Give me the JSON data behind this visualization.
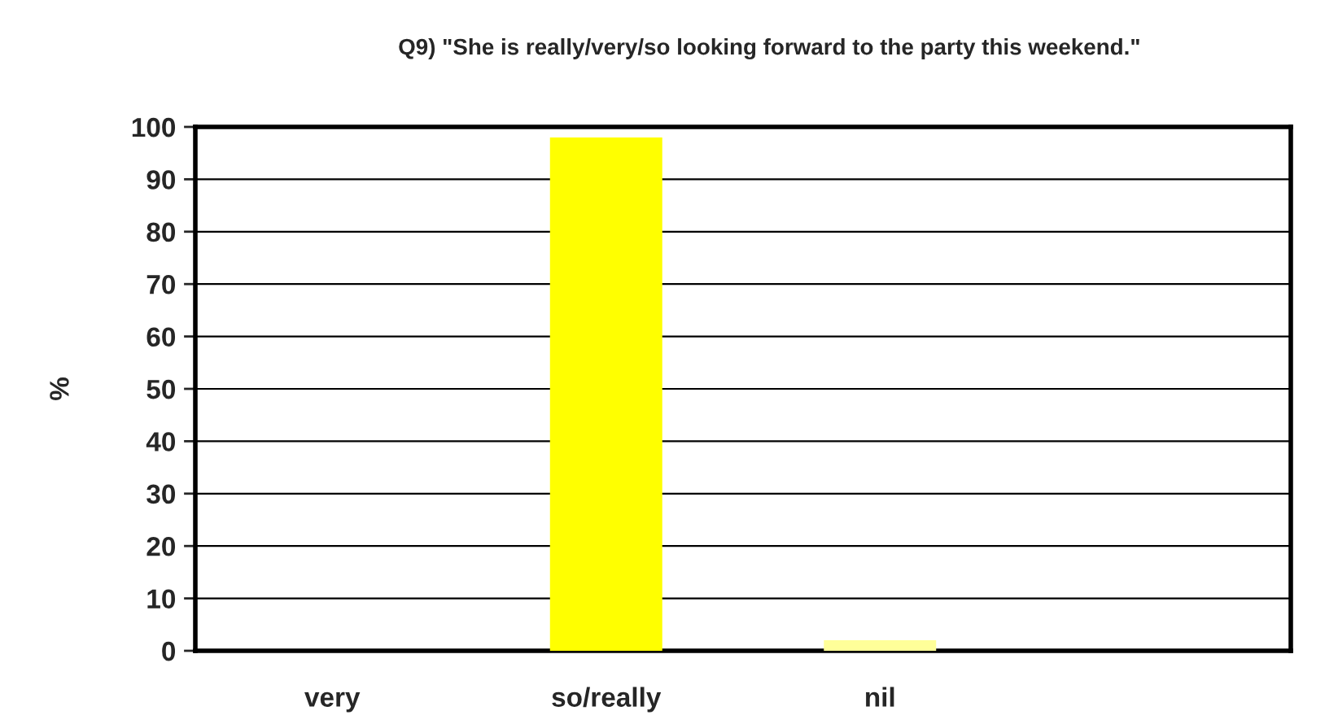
{
  "chart_data": {
    "type": "bar",
    "title": "Q9) \"She is really/very/so looking forward to the party this weekend.\"",
    "ylabel": "%",
    "categories": [
      "very",
      "so/really",
      "nil",
      null
    ],
    "values": [
      0,
      98,
      2,
      null
    ],
    "colors": [
      "#ffff00",
      "#ffff00",
      "#ffff99",
      "#ffff00"
    ],
    "ylim": [
      0,
      100
    ],
    "yticks": [
      0,
      10,
      20,
      30,
      40,
      50,
      60,
      70,
      80,
      90,
      100
    ],
    "grid": "y",
    "legend": false
  }
}
